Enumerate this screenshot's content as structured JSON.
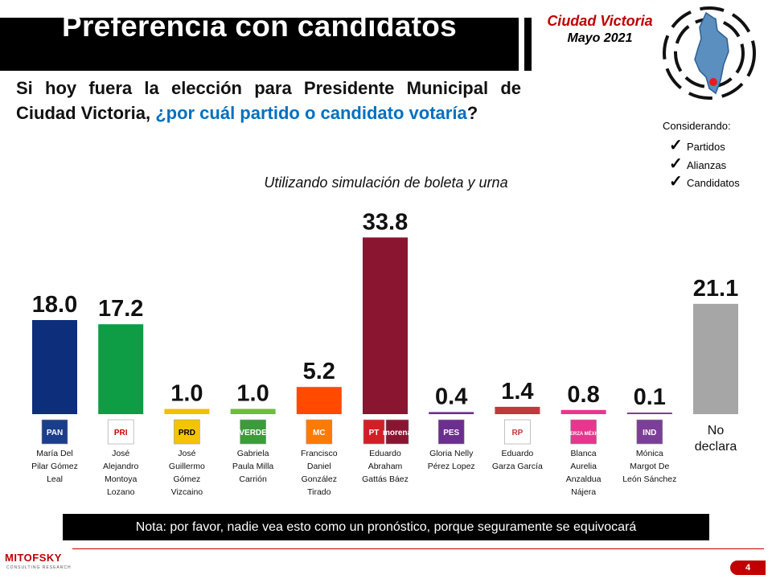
{
  "header": {
    "title": "Preferencia con candidatos",
    "city": "Ciudad Victoria",
    "date": "Mayo 2021"
  },
  "question": {
    "part1": "Si hoy fuera la elección para Presidente Municipal de Ciudad Victoria, ",
    "highlight": "¿por cuál partido o candidato votaría",
    "part2": "?"
  },
  "considering": {
    "label": "Considerando:",
    "items": [
      "Partidos",
      "Alianzas",
      "Candidatos"
    ]
  },
  "chart_data": {
    "type": "bar",
    "title": "Utilizando simulación de boleta y urna",
    "categories": [
      [
        "María Del",
        "Pilar Gómez",
        "Leal"
      ],
      [
        "José",
        "Alejandro",
        "Montoya",
        "Lozano"
      ],
      [
        "José",
        "Guillermo",
        "Gómez",
        "Vizcaino"
      ],
      [
        "Gabriela",
        "Paula Milla",
        "Carrión"
      ],
      [
        "Francisco",
        "Daniel",
        "González",
        "Tirado"
      ],
      [
        "Eduardo",
        "Abraham",
        "Gattás  Báez"
      ],
      [
        "Gloria Nelly",
        "Pérez Lopez"
      ],
      [
        "Eduardo",
        "Garza García"
      ],
      [
        "Blanca",
        "Aurelia",
        "Anzaldua",
        "Nájera"
      ],
      [
        "Mónica",
        "Margot De",
        "León Sánchez"
      ],
      [
        "No",
        "declara"
      ]
    ],
    "values": [
      18.0,
      17.2,
      1.0,
      1.0,
      5.2,
      33.8,
      0.4,
      1.4,
      0.8,
      0.1,
      21.1
    ],
    "value_labels": [
      "18.0",
      "17.2",
      "1.0",
      "1.0",
      "5.2",
      "33.8",
      "0.4",
      "1.4",
      "0.8",
      "0.1",
      "21.1"
    ],
    "colors": [
      "#0d2e7a",
      "#0e9c45",
      "#f2c100",
      "#6abf3b",
      "#ff4a00",
      "#8a1530",
      "#6b2f8f",
      "#c0393b",
      "#e8368f",
      "#7b3f98",
      "#a6a6a6"
    ],
    "party_logos": [
      {
        "text": "PAN",
        "bg": "#1a3e8c",
        "fg": "#ffffff"
      },
      {
        "text": "PRI",
        "bg": "#ffffff",
        "fg": "#cc0000"
      },
      {
        "text": "PRD",
        "bg": "#f5c400",
        "fg": "#000000"
      },
      {
        "text": "VERDE",
        "bg": "#3b9c3a",
        "fg": "#ffffff"
      },
      {
        "text": "MC",
        "bg": "#ff7a00",
        "fg": "#ffffff"
      },
      {
        "text": "PT",
        "bg": "#d21f26",
        "fg": "#ffffff"
      },
      {
        "text": "PES",
        "bg": "#6b2f8f",
        "fg": "#ffffff"
      },
      {
        "text": "RP",
        "bg": "#ffffff",
        "fg": "#c0393b"
      },
      {
        "text": "FUERZA MÉXICO",
        "bg": "#e8368f",
        "fg": "#ffffff"
      },
      {
        "text": "IND",
        "bg": "#7b3f98",
        "fg": "#ffffff"
      }
    ],
    "morena_logo": {
      "text": "morena",
      "bg": "#8a1530",
      "fg": "#ffffff"
    },
    "ylim": [
      0,
      40
    ],
    "grid": false,
    "legend": "none"
  },
  "note": "Nota: por favor, nadie vea esto como un pronóstico, porque seguramente se equivocará",
  "footer": {
    "brand": "MITOFSKY",
    "brand_sub": "CONSULTING RESEARCH",
    "page": "4"
  }
}
